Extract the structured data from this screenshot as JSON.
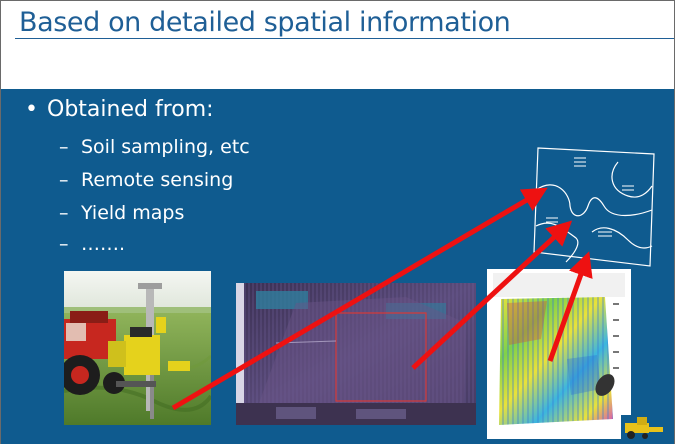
{
  "slide": {
    "title": "Based on detailed spatial information",
    "bullet": "Obtained from:",
    "bullet_symbol": "•",
    "dash_symbol": "–",
    "sub_items": [
      "Soil sampling, etc",
      "Remote sensing",
      "Yield maps",
      "……."
    ]
  },
  "colors": {
    "title": "#1f5f96",
    "content_background": "#0f5b8f",
    "bullet_text": "#ffffff",
    "arrows": "#ee1111"
  },
  "images": {
    "tractor_photo": "tractor-soil-sampler-photo",
    "aerial_photo": "aerial-remote-sensing-image",
    "yield_map": "yield-map-image",
    "zone_map": "management-zone-map",
    "combine": "combine-harvester-icon"
  }
}
